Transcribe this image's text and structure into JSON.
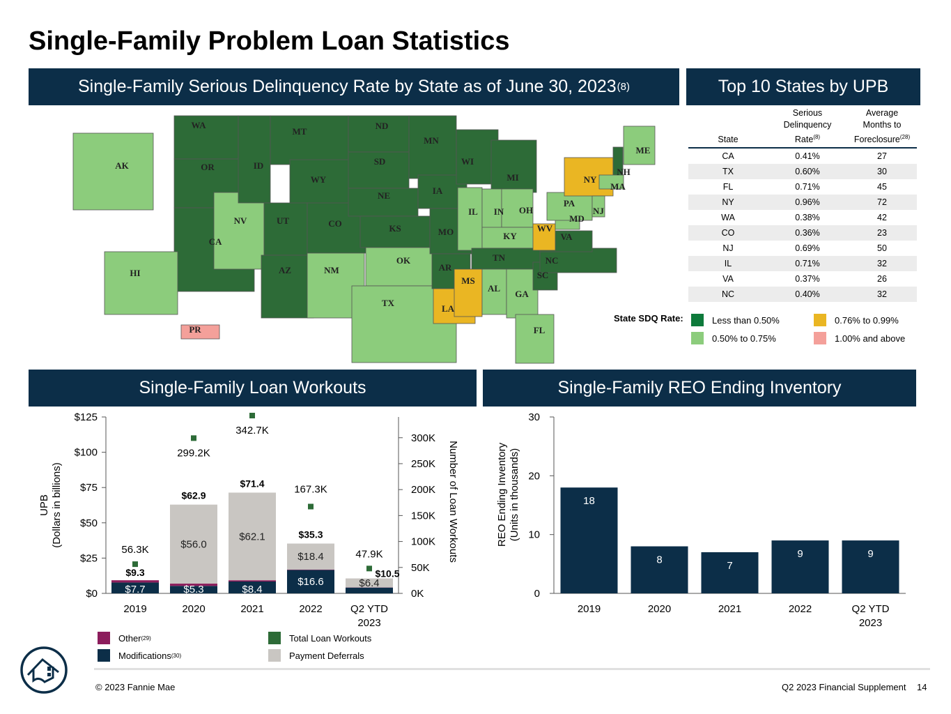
{
  "page": {
    "title": "Single-Family Problem Loan Statistics",
    "footer_left": "© 2023 Fannie Mae",
    "footer_right": "Q2 2023 Financial Supplement",
    "page_number": "14"
  },
  "map_panel": {
    "title": "Single-Family Serious Delinquency Rate by State as of June 30, 2023",
    "title_note": "(8)",
    "legend_title": "State SDQ Rate:",
    "legend": [
      {
        "label": "Less than 0.50%",
        "color": "#2d6b37"
      },
      {
        "label": "0.50% to 0.75%",
        "color": "#8ccc7c"
      },
      {
        "label": "0.76% to 0.99%",
        "color": "#eab623"
      },
      {
        "label": "1.00% and above",
        "color": "#f4a09a"
      }
    ],
    "states": [
      {
        "code": "WA",
        "band": 0
      },
      {
        "code": "OR",
        "band": 0
      },
      {
        "code": "CA",
        "band": 0
      },
      {
        "code": "NV",
        "band": 1
      },
      {
        "code": "ID",
        "band": 0
      },
      {
        "code": "MT",
        "band": 0
      },
      {
        "code": "WY",
        "band": 0
      },
      {
        "code": "UT",
        "band": 0
      },
      {
        "code": "AZ",
        "band": 0
      },
      {
        "code": "CO",
        "band": 0
      },
      {
        "code": "NM",
        "band": 1
      },
      {
        "code": "ND",
        "band": 0
      },
      {
        "code": "SD",
        "band": 0
      },
      {
        "code": "NE",
        "band": 0
      },
      {
        "code": "KS",
        "band": 0
      },
      {
        "code": "OK",
        "band": 1
      },
      {
        "code": "TX",
        "band": 1
      },
      {
        "code": "MN",
        "band": 0
      },
      {
        "code": "IA",
        "band": 0
      },
      {
        "code": "MO",
        "band": 0
      },
      {
        "code": "AR",
        "band": 0
      },
      {
        "code": "LA",
        "band": 2
      },
      {
        "code": "WI",
        "band": 0
      },
      {
        "code": "IL",
        "band": 1
      },
      {
        "code": "MI",
        "band": 0
      },
      {
        "code": "IN",
        "band": 1
      },
      {
        "code": "OH",
        "band": 1
      },
      {
        "code": "KY",
        "band": 1
      },
      {
        "code": "TN",
        "band": 0
      },
      {
        "code": "MS",
        "band": 2
      },
      {
        "code": "AL",
        "band": 1
      },
      {
        "code": "GA",
        "band": 1
      },
      {
        "code": "FL",
        "band": 1
      },
      {
        "code": "SC",
        "band": 0
      },
      {
        "code": "NC",
        "band": 0
      },
      {
        "code": "VA",
        "band": 0
      },
      {
        "code": "WV",
        "band": 2
      },
      {
        "code": "MD",
        "band": 1
      },
      {
        "code": "PA",
        "band": 1
      },
      {
        "code": "NY",
        "band": 2
      },
      {
        "code": "NJ",
        "band": 1
      },
      {
        "code": "NH",
        "band": 0
      },
      {
        "code": "MA",
        "band": 1
      },
      {
        "code": "ME",
        "band": 1
      },
      {
        "code": "AK",
        "band": 1
      },
      {
        "code": "HI",
        "band": 1
      },
      {
        "code": "PR",
        "band": 3
      }
    ]
  },
  "top10_panel": {
    "title": "Top 10 States by UPB",
    "columns": {
      "state": "State",
      "sdq_line1": "Serious",
      "sdq_line2": "Delinquency",
      "sdq_line3": "Rate",
      "sdq_note": "(8)",
      "months_line1": "Average",
      "months_line2": "Months to",
      "months_line3": "Foreclosure",
      "months_note": "(28)"
    },
    "rows": [
      {
        "state": "CA",
        "rate": "0.41%",
        "months": "27"
      },
      {
        "state": "TX",
        "rate": "0.60%",
        "months": "30"
      },
      {
        "state": "FL",
        "rate": "0.71%",
        "months": "45"
      },
      {
        "state": "NY",
        "rate": "0.96%",
        "months": "72"
      },
      {
        "state": "WA",
        "rate": "0.38%",
        "months": "42"
      },
      {
        "state": "CO",
        "rate": "0.36%",
        "months": "23"
      },
      {
        "state": "NJ",
        "rate": "0.69%",
        "months": "50"
      },
      {
        "state": "IL",
        "rate": "0.71%",
        "months": "32"
      },
      {
        "state": "VA",
        "rate": "0.37%",
        "months": "26"
      },
      {
        "state": "NC",
        "rate": "0.40%",
        "months": "32"
      }
    ]
  },
  "workouts_panel": {
    "title": "Single-Family Loan Workouts"
  },
  "reo_panel": {
    "title": "Single-Family REO Ending Inventory"
  },
  "colors": {
    "navy": "#0c2e48",
    "other": "#8c1d5c",
    "deferral": "#c9c6c2",
    "total": "#2d6b37"
  },
  "chart_data": [
    {
      "type": "bar",
      "subtype": "stacked-bar-with-markers",
      "categories": [
        "2019",
        "2020",
        "2021",
        "2022",
        "Q2 YTD 2023"
      ],
      "ylabel": "UPB (Dollars in billions)",
      "y2label": "Number of Loan Workouts",
      "ylim": [
        0,
        125
      ],
      "yticks": [
        "$0",
        "$25",
        "$50",
        "$75",
        "$100",
        "$125"
      ],
      "y2lim": [
        0,
        340000
      ],
      "y2ticks": [
        "0K",
        "50K",
        "100K",
        "150K",
        "200K",
        "250K",
        "300K"
      ],
      "series": [
        {
          "name": "Modifications",
          "note": "(30)",
          "values": [
            7.7,
            5.3,
            8.4,
            16.6,
            4.1
          ],
          "labels": [
            "$7.7",
            "$5.3",
            "$8.4",
            "$16.6",
            ""
          ]
        },
        {
          "name": "Other",
          "note": "(29)",
          "values": [
            1.6,
            1.6,
            0.9,
            0.3,
            0.1
          ],
          "labels": [
            "",
            "",
            "",
            "",
            ""
          ]
        },
        {
          "name": "Payment Deferrals",
          "values": [
            0,
            56.0,
            62.1,
            18.4,
            6.4
          ],
          "labels": [
            "",
            "$56.0",
            "$62.1",
            "$18.4",
            "$6.4"
          ]
        }
      ],
      "totals": [
        9.3,
        62.9,
        71.4,
        35.3,
        10.5
      ],
      "total_labels": [
        "$9.3",
        "$62.9",
        "$71.4",
        "$35.3",
        "$10.5"
      ],
      "markers": {
        "name": "Total Loan Workouts",
        "values": [
          56300,
          299200,
          342700,
          167300,
          47900
        ],
        "labels": [
          "56.3K",
          "299.2K",
          "342.7K",
          "167.3K",
          "47.9K"
        ]
      },
      "grid": false,
      "legend_position": "bottom"
    },
    {
      "type": "bar",
      "categories": [
        "2019",
        "2020",
        "2021",
        "2022",
        "Q2 YTD 2023"
      ],
      "values": [
        18,
        8,
        7,
        9,
        9
      ],
      "labels": [
        "18",
        "8",
        "7",
        "9",
        "9"
      ],
      "ylabel": "REO Ending Inventory (Units in thousands)",
      "ylim": [
        0,
        30
      ],
      "yticks": [
        "0",
        "10",
        "20",
        "30"
      ],
      "grid": false
    }
  ]
}
